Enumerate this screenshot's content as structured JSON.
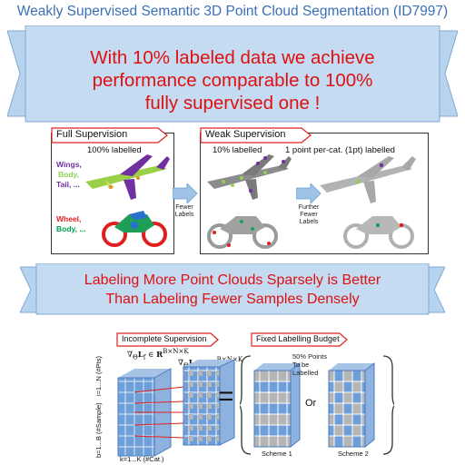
{
  "title": "Weakly Supervised Semantic 3D Point Cloud Segmentation (ID7997)",
  "banner1": {
    "line1": "With 10% labeled data we achieve",
    "line2": "performance comparable to 100%",
    "line3": "fully supervised one !"
  },
  "full_supervision": {
    "tab": "Full Supervision",
    "caption": "100% labelled",
    "airplane_parts": [
      "Wings,",
      "Body,",
      "Tail, ..."
    ],
    "motorbike_parts": [
      "Wheel,",
      "Body, ..."
    ]
  },
  "arrow1_label": [
    "Fewer",
    "Labels"
  ],
  "weak_supervision": {
    "tab": "Weak Supervision",
    "caption_10": "10% labelled",
    "caption_1pt": "1 point per-cat. (1pt) labelled"
  },
  "arrow2_label": [
    "Further",
    "Fewer",
    "Labels"
  ],
  "banner2": {
    "line1": "Labeling More Point Clouds Sparsely is Better",
    "line2": "Than Labeling Fewer Samples Densely"
  },
  "incomplete_supervision": {
    "tab": "Incomplete Supervision",
    "formula_left": "∇Θ L_f ∈ R^{B×N×K}",
    "formula_right": "∇Θ L_w ∈ R^{B×N×K}",
    "axis_n": "i=1...N (#Pts)",
    "axis_b": "b=1...B (#Sample)",
    "axis_k": "k=1...K (#Cat.)"
  },
  "fixed_budget": {
    "tab": "Fixed Labelling Budget",
    "note": [
      "50% Points",
      "To be",
      "Labelled"
    ],
    "or": "Or",
    "scheme1": "Scheme 1",
    "scheme2": "Scheme 2"
  },
  "colors": {
    "title": "#3a6fb6",
    "banner_fill": "#b7d3ee",
    "banner_text": "#e01010",
    "tab_border": "#e02020",
    "cube_blue": "#6f9fd8",
    "cube_grey": "#b5b5b5",
    "arrow_blue": "#9ec3e6",
    "label_purple": "#7030a0",
    "label_green": "#92d050",
    "label_red": "#e02020",
    "label_teal": "#00a050"
  }
}
